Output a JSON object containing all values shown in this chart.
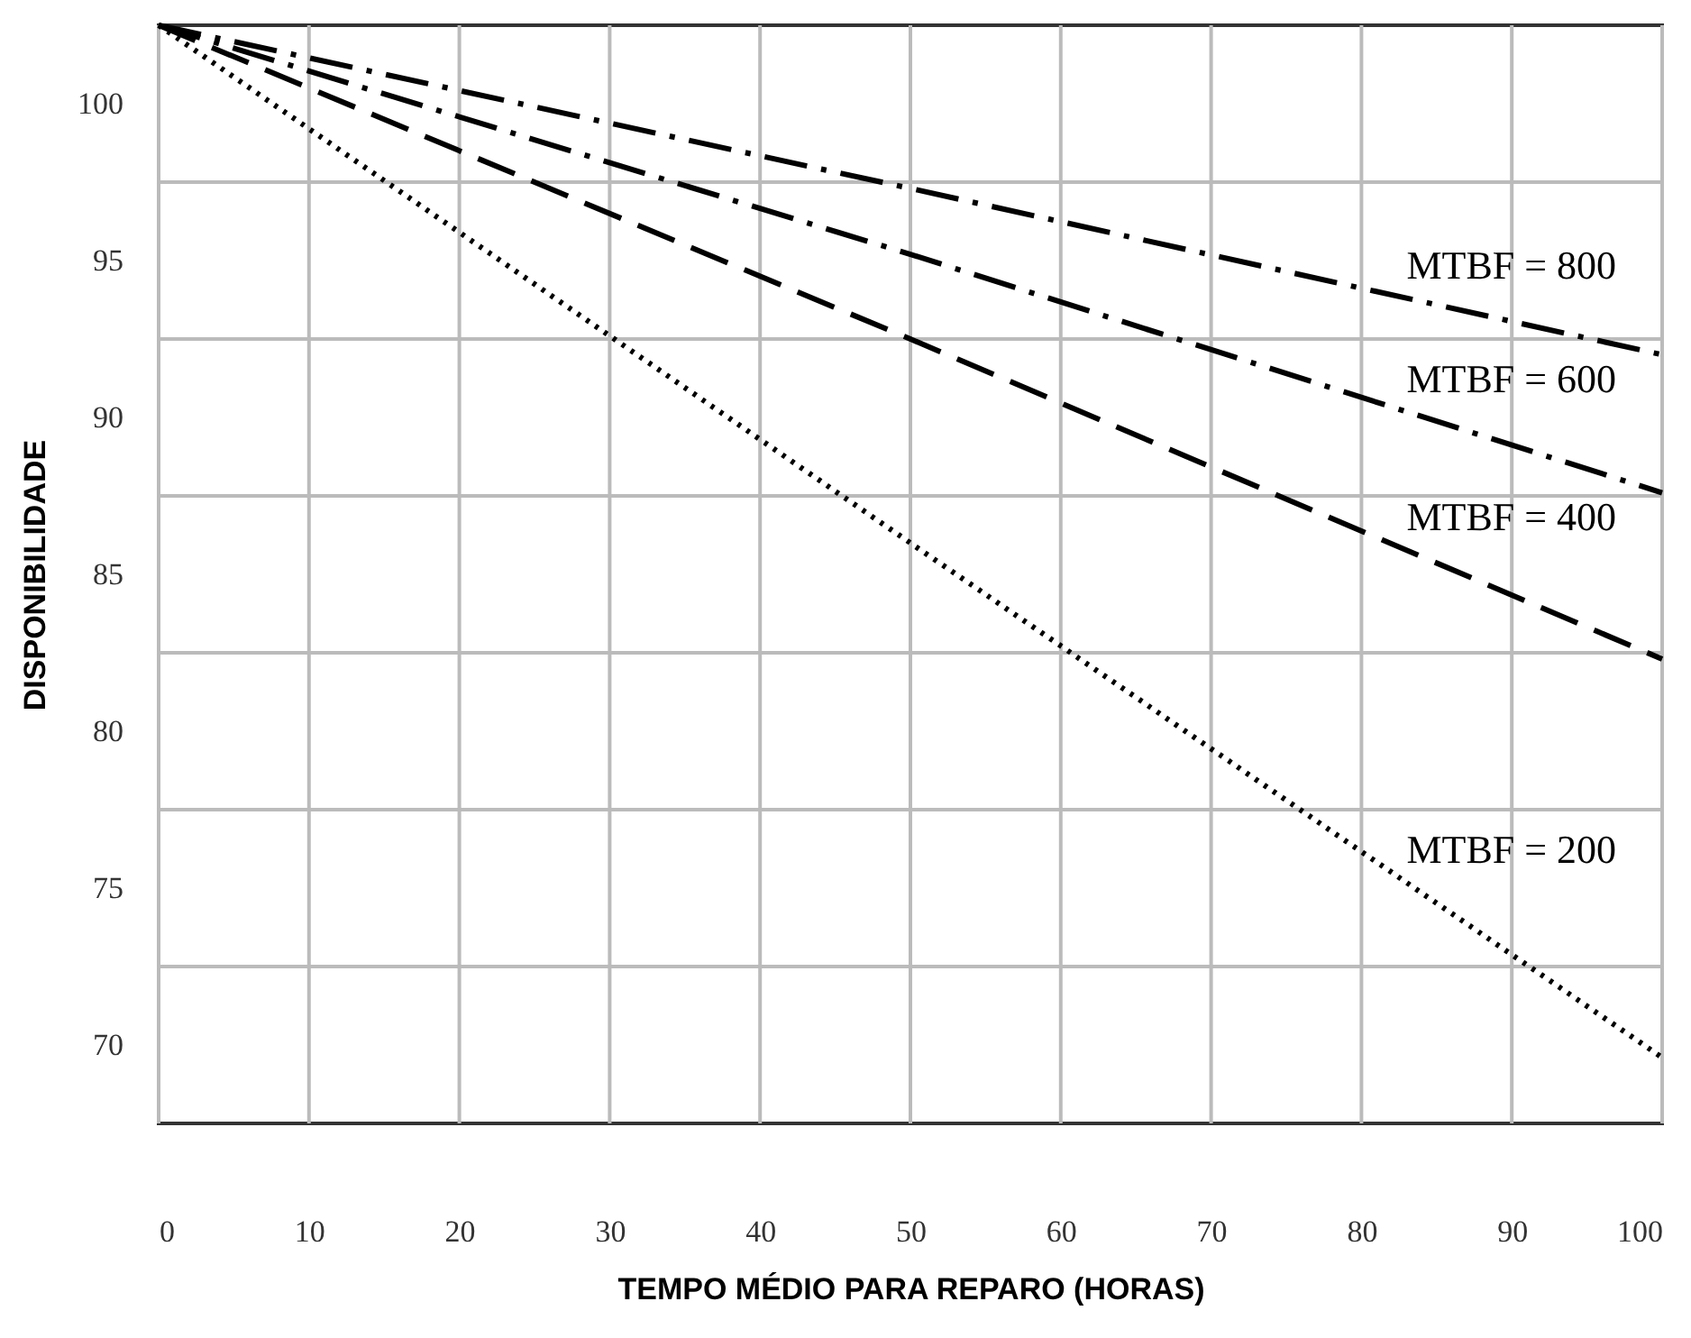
{
  "chart_data": {
    "type": "line",
    "xlabel": "TEMPO MÉDIO PARA REPARO (HORAS)",
    "ylabel": "DISPONIBILIDADE",
    "xlim": [
      0,
      100
    ],
    "xticks": [
      0,
      10,
      20,
      30,
      40,
      50,
      60,
      70,
      80,
      90,
      100
    ],
    "ylim": [
      67.5,
      102.5
    ],
    "yticks": [
      {
        "value": 72.5,
        "label": null
      },
      {
        "value": 77.5,
        "label": null
      },
      {
        "value": 82.5,
        "label": null
      },
      {
        "value": 87.5,
        "label": null
      },
      {
        "value": 92.5,
        "label": null
      },
      {
        "value": 97.5,
        "label": null
      },
      70,
      75,
      80,
      85,
      90,
      95,
      100
    ],
    "grid": true,
    "marker": "none",
    "x": [
      0,
      50,
      100
    ],
    "series": [
      {
        "name": "MTBF = 800",
        "color": "#000000",
        "line_style": "dashdot",
        "values": [
          102.5,
          97.3,
          92.0
        ]
      },
      {
        "name": "MTBF = 600",
        "color": "#000000",
        "line_style": "dashdot",
        "values": [
          102.5,
          95.2,
          87.6
        ]
      },
      {
        "name": "MTBF = 400",
        "color": "#000000",
        "line_style": "dashed",
        "values": [
          102.5,
          92.5,
          82.3
        ]
      },
      {
        "name": "MTBF = 200",
        "color": "#000000",
        "line_style": "dotted",
        "values": [
          102.5,
          86.0,
          69.6
        ]
      }
    ]
  }
}
